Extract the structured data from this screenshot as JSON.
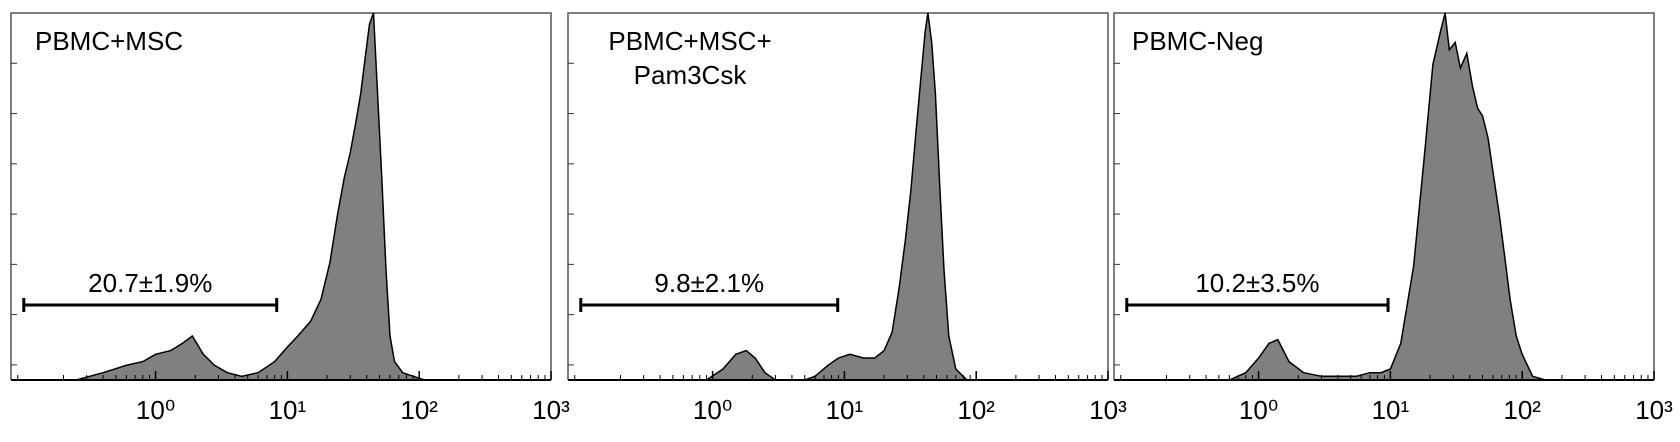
{
  "chart_data": [
    {
      "type": "area",
      "title": [
        "PBMC+MSC"
      ],
      "color": "#808080",
      "xscale": "log",
      "xlim": [
        0.08,
        1000
      ],
      "xticks": [
        {
          "value": 1,
          "label": "10⁰"
        },
        {
          "value": 10,
          "label": "10¹"
        },
        {
          "value": 100,
          "label": "10²"
        },
        {
          "value": 1000,
          "label": "10³"
        }
      ],
      "ylim": [
        0,
        100
      ],
      "x": [
        0.25,
        0.4,
        0.6,
        0.8,
        1.0,
        1.3,
        1.6,
        1.9,
        2.3,
        2.8,
        3.5,
        4.5,
        6,
        8,
        10,
        12,
        15,
        18,
        21,
        24,
        27,
        30,
        33,
        36,
        39,
        42,
        45,
        48,
        52,
        56,
        60,
        65,
        75,
        90,
        110
      ],
      "values": [
        0,
        2,
        4,
        5,
        7,
        8,
        10,
        12,
        7,
        4,
        2,
        1,
        2,
        5,
        9,
        12,
        16,
        22,
        32,
        45,
        55,
        62,
        70,
        78,
        88,
        97,
        100,
        80,
        55,
        30,
        12,
        5,
        2,
        1,
        0
      ],
      "gate": {
        "range": [
          0.1,
          8.3
        ],
        "label": "20.7±1.9%"
      }
    },
    {
      "type": "area",
      "title": [
        "PBMC+MSC+",
        "Pam3Csk"
      ],
      "color": "#808080",
      "xscale": "log",
      "xlim": [
        0.08,
        1000
      ],
      "xticks": [
        {
          "value": 1,
          "label": "10⁰"
        },
        {
          "value": 10,
          "label": "10¹"
        },
        {
          "value": 100,
          "label": "10²"
        },
        {
          "value": 1000,
          "label": "10³"
        }
      ],
      "ylim": [
        0,
        100
      ],
      "x": [
        0.9,
        1.2,
        1.5,
        1.8,
        2.1,
        2.5,
        3,
        4,
        5,
        6,
        7.5,
        9,
        11,
        14,
        17,
        20,
        23,
        26,
        29,
        32,
        35,
        38,
        41,
        43,
        46,
        49,
        53,
        57,
        62,
        70,
        85
      ],
      "values": [
        0,
        3,
        7,
        8,
        6,
        2,
        0,
        0,
        0,
        1,
        4,
        6,
        7,
        6,
        6,
        8,
        13,
        25,
        38,
        52,
        68,
        82,
        95,
        100,
        92,
        78,
        52,
        30,
        12,
        3,
        0
      ],
      "gate": {
        "range": [
          0.1,
          8.9
        ],
        "label": "9.8±2.1%"
      }
    },
    {
      "type": "area",
      "title": [
        "PBMC-Neg"
      ],
      "color": "#808080",
      "xscale": "log",
      "xlim": [
        0.08,
        1000
      ],
      "xticks": [
        {
          "value": 1,
          "label": "10⁰"
        },
        {
          "value": 10,
          "label": "10¹"
        },
        {
          "value": 100,
          "label": "10²"
        },
        {
          "value": 1000,
          "label": "10³"
        }
      ],
      "ylim": [
        0,
        100
      ],
      "x": [
        0.6,
        0.8,
        1.0,
        1.2,
        1.4,
        1.7,
        2.2,
        3,
        4,
        5.5,
        7,
        8.5,
        10,
        12,
        15,
        18,
        21,
        24,
        26,
        28,
        31,
        34,
        38,
        42,
        46,
        50,
        55,
        61,
        67,
        74,
        81,
        90,
        100,
        120,
        150
      ],
      "values": [
        0,
        2,
        6,
        10,
        11,
        5,
        2,
        1,
        1,
        1,
        2,
        2,
        3,
        10,
        31,
        60,
        86,
        95,
        100,
        90,
        92,
        85,
        89,
        80,
        74,
        72,
        66,
        55,
        45,
        33,
        22,
        12,
        7,
        1,
        0
      ],
      "gate": {
        "range": [
          0.1,
          9.6
        ],
        "label": "10.2±3.5%"
      }
    }
  ]
}
